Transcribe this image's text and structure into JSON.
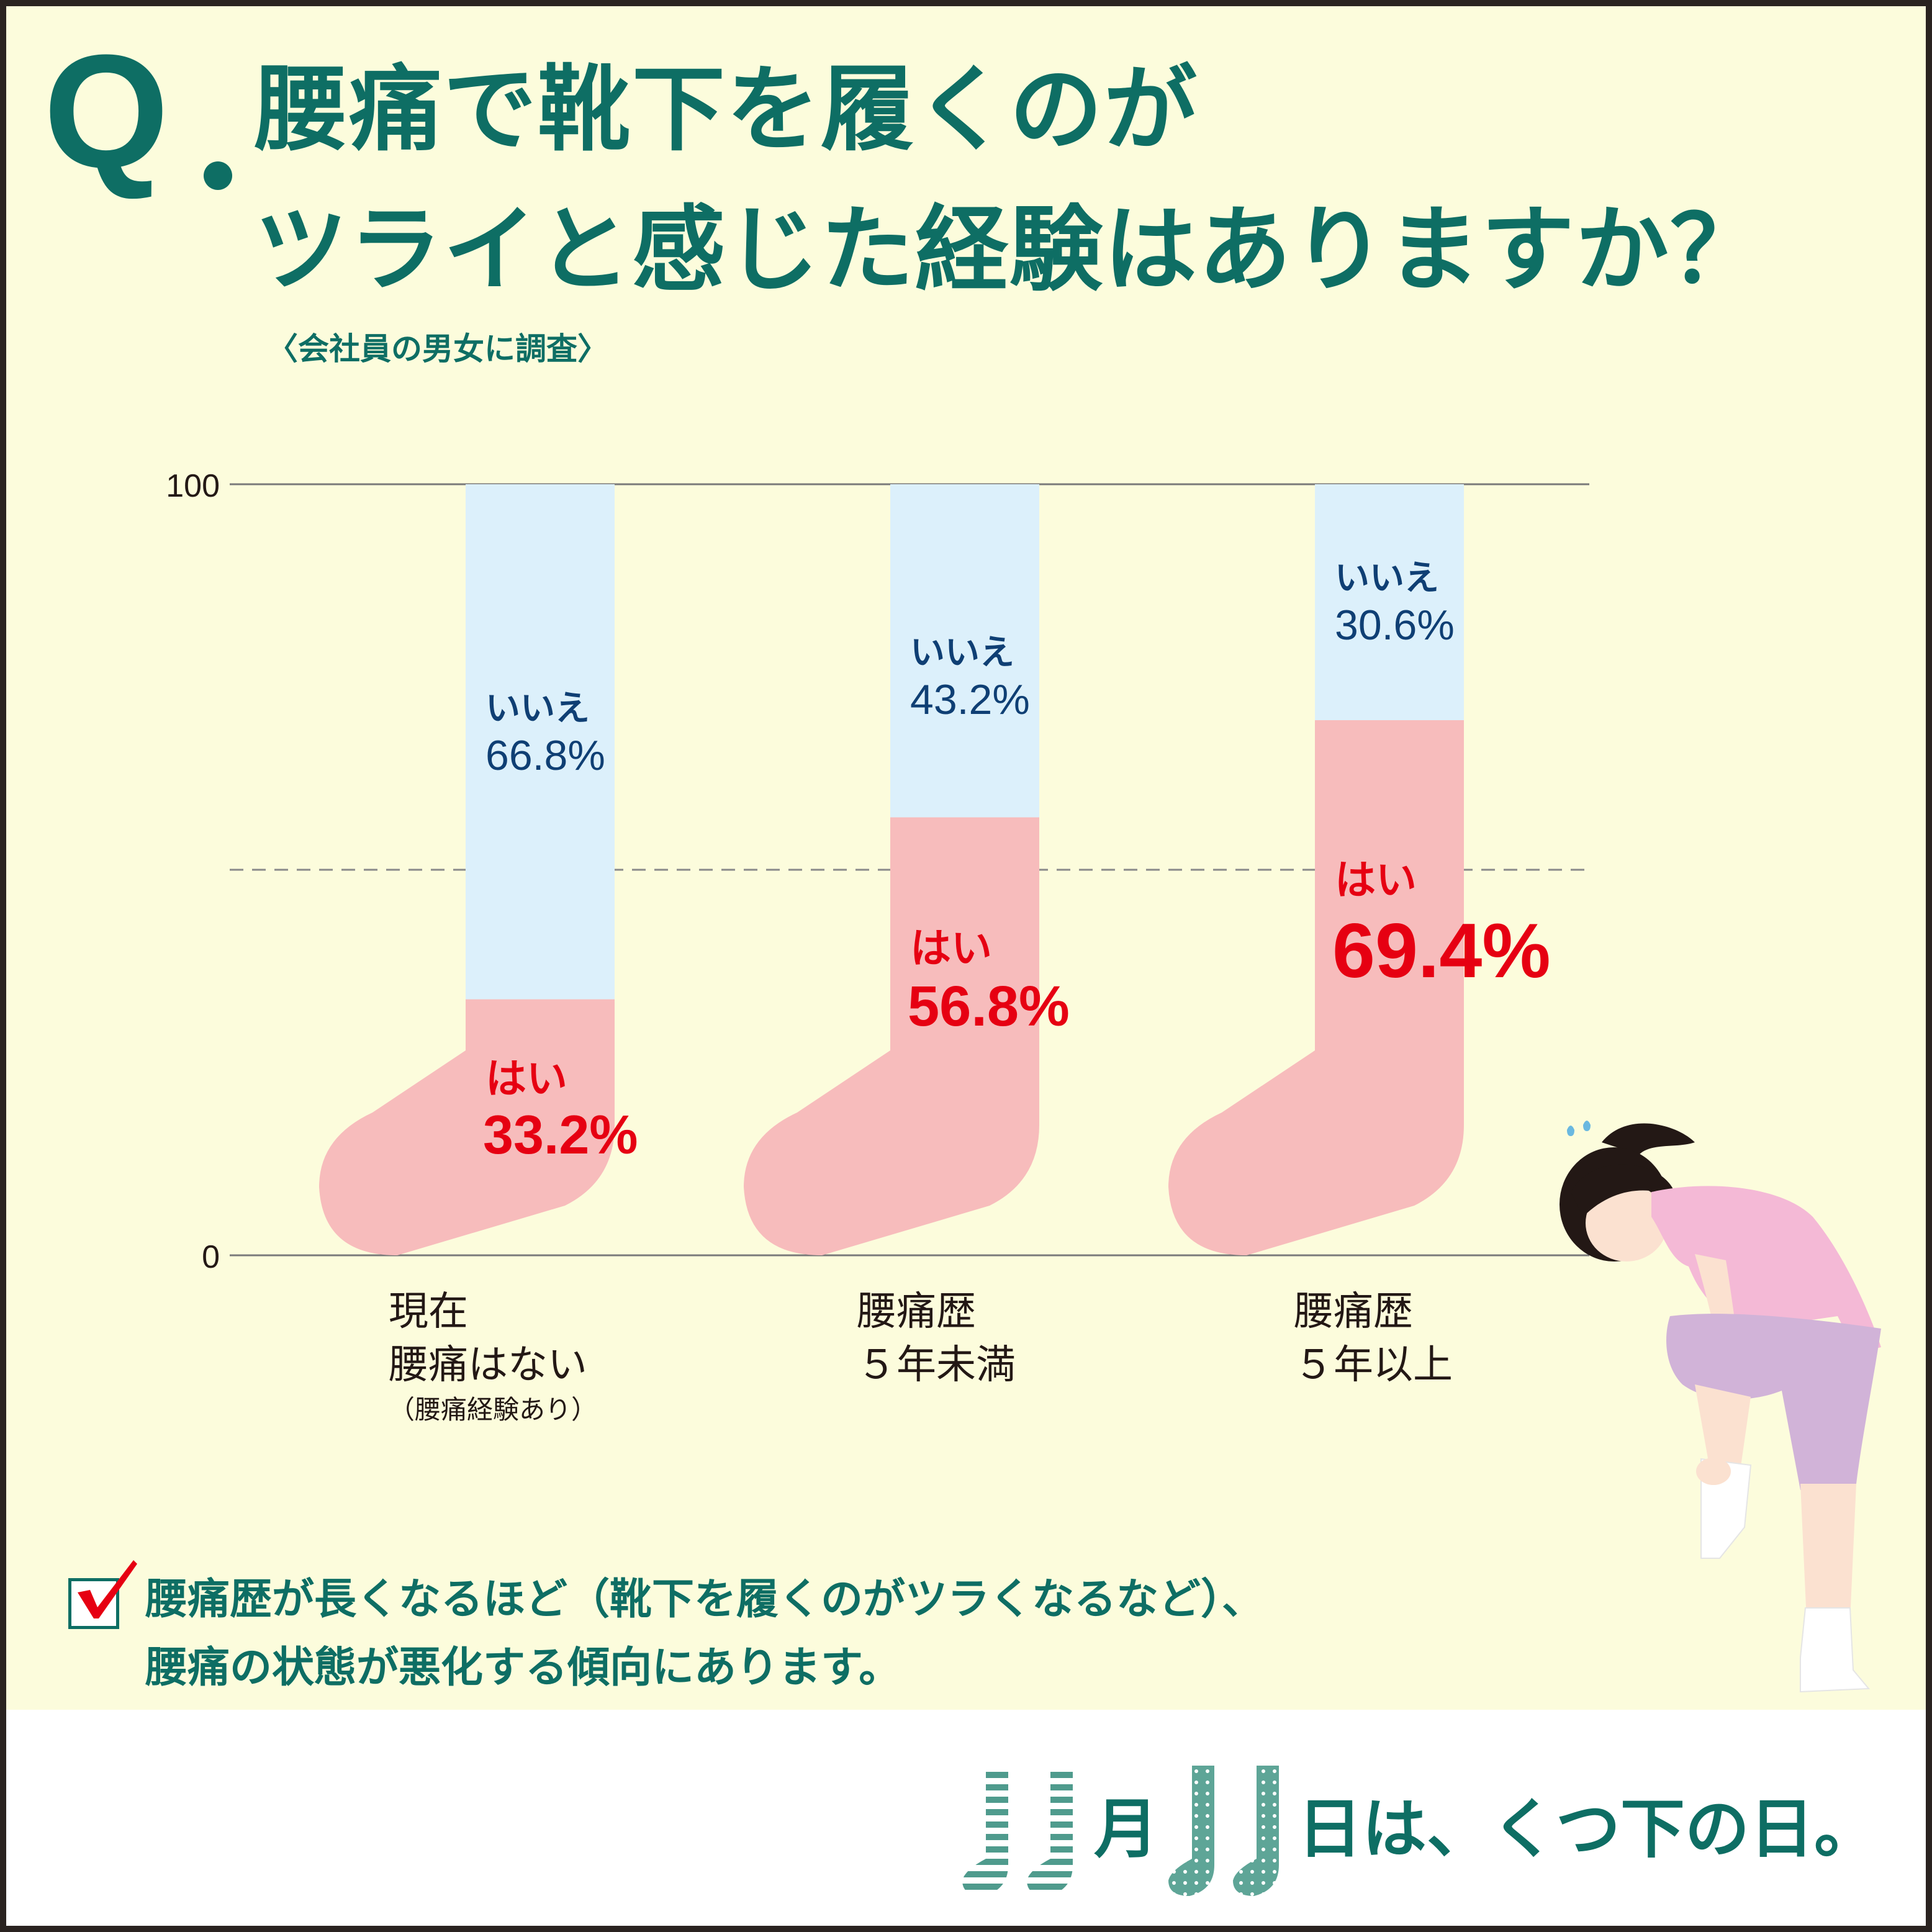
{
  "title": {
    "q_mark": "Q",
    "line1": "腰痛で靴下を履くのが",
    "line2": "ツライと感じた経験はありますか？",
    "subtitle": "〈会社員の男女に調査〉"
  },
  "chart_data": {
    "type": "bar",
    "stacked": true,
    "ylim": [
      0,
      100
    ],
    "y_ticks": [
      "0",
      "100"
    ],
    "reference_line": 50,
    "categories": [
      {
        "line1": "現在",
        "line2": "腰痛はない",
        "note": "（腰痛経験あり）"
      },
      {
        "line1": "腰痛歴",
        "line2": "５年未満",
        "note": ""
      },
      {
        "line1": "腰痛歴",
        "line2": "５年以上",
        "note": ""
      }
    ],
    "series": [
      {
        "name": "はい",
        "color": "#f7bcbc",
        "label_color": "#e60012",
        "values": [
          33.2,
          56.8,
          69.4
        ],
        "labels": [
          "33.2%",
          "56.8%",
          "69.4%"
        ]
      },
      {
        "name": "いいえ",
        "color": "#dcf0fb",
        "label_color": "#0f3f74",
        "values": [
          66.8,
          43.2,
          30.6
        ],
        "labels": [
          "66.8%",
          "43.2%",
          "30.6%"
        ]
      }
    ]
  },
  "note": {
    "line1": "腰痛歴が長くなるほど（靴下を履くのがツラくなるなど）、",
    "line2": "腰痛の状態が悪化する傾向にあります。"
  },
  "footer": {
    "month_word": "月",
    "day_text": "日は、くつ下の日。"
  },
  "colors": {
    "background": "#fcfcdc",
    "brand": "#0e6e64",
    "yes_fill": "#f7bcbc",
    "no_fill": "#dcf0fb",
    "yes_text": "#e60012",
    "no_text": "#0f3f74"
  }
}
